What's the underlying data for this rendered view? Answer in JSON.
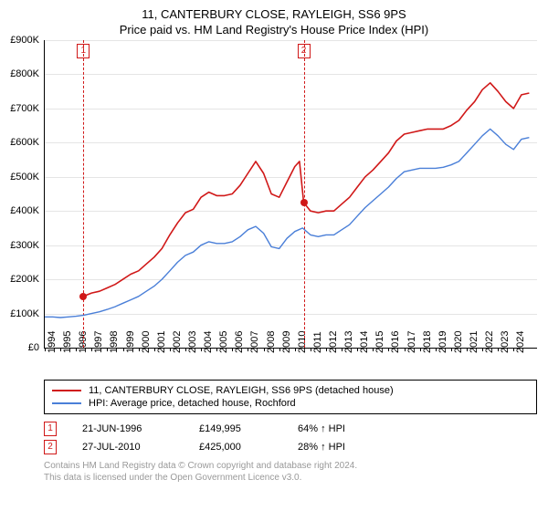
{
  "title_line1": "11, CANTERBURY CLOSE, RAYLEIGH, SS6 9PS",
  "title_line2": "Price paid vs. HM Land Registry's House Price Index (HPI)",
  "chart": {
    "type": "line",
    "x_start": 1994,
    "x_end": 2025.5,
    "ylim": [
      0,
      900
    ],
    "ytick_step": 100,
    "ytick_prefix": "£",
    "ytick_suffix": "K",
    "xtick_years": [
      1994,
      1995,
      1996,
      1997,
      1998,
      1999,
      2000,
      2001,
      2002,
      2003,
      2004,
      2005,
      2006,
      2007,
      2008,
      2009,
      2010,
      2011,
      2012,
      2013,
      2014,
      2015,
      2016,
      2017,
      2018,
      2019,
      2020,
      2021,
      2022,
      2023,
      2024
    ],
    "grid_color": "#e5e5e5",
    "background_color": "#ffffff",
    "series": {
      "property": {
        "color": "#d01818",
        "width": 1.6,
        "label": "11, CANTERBURY CLOSE, RAYLEIGH, SS6 9PS (detached house)",
        "points": [
          [
            1996.47,
            150
          ],
          [
            1997,
            160
          ],
          [
            1997.5,
            165
          ],
          [
            1998,
            175
          ],
          [
            1998.5,
            185
          ],
          [
            1999,
            200
          ],
          [
            1999.5,
            215
          ],
          [
            2000,
            225
          ],
          [
            2000.5,
            245
          ],
          [
            2001,
            265
          ],
          [
            2001.5,
            290
          ],
          [
            2002,
            330
          ],
          [
            2002.5,
            365
          ],
          [
            2003,
            395
          ],
          [
            2003.5,
            405
          ],
          [
            2004,
            440
          ],
          [
            2004.5,
            455
          ],
          [
            2005,
            445
          ],
          [
            2005.5,
            445
          ],
          [
            2006,
            450
          ],
          [
            2006.5,
            475
          ],
          [
            2007,
            510
          ],
          [
            2007.5,
            545
          ],
          [
            2008,
            510
          ],
          [
            2008.5,
            450
          ],
          [
            2009,
            440
          ],
          [
            2009.5,
            485
          ],
          [
            2010,
            530
          ],
          [
            2010.3,
            545
          ],
          [
            2010.57,
            425
          ],
          [
            2011,
            400
          ],
          [
            2011.5,
            395
          ],
          [
            2012,
            400
          ],
          [
            2012.5,
            400
          ],
          [
            2013,
            420
          ],
          [
            2013.5,
            440
          ],
          [
            2014,
            470
          ],
          [
            2014.5,
            500
          ],
          [
            2015,
            520
          ],
          [
            2015.5,
            545
          ],
          [
            2016,
            570
          ],
          [
            2016.5,
            605
          ],
          [
            2017,
            625
          ],
          [
            2017.5,
            630
          ],
          [
            2018,
            635
          ],
          [
            2018.5,
            640
          ],
          [
            2019,
            640
          ],
          [
            2019.5,
            640
          ],
          [
            2020,
            650
          ],
          [
            2020.5,
            665
          ],
          [
            2021,
            695
          ],
          [
            2021.5,
            720
          ],
          [
            2022,
            755
          ],
          [
            2022.5,
            775
          ],
          [
            2023,
            750
          ],
          [
            2023.5,
            720
          ],
          [
            2024,
            700
          ],
          [
            2024.5,
            740
          ],
          [
            2025,
            745
          ]
        ]
      },
      "hpi": {
        "color": "#4a7fd8",
        "width": 1.4,
        "label": "HPI: Average price, detached house, Rochford",
        "points": [
          [
            1994,
            90
          ],
          [
            1994.5,
            90
          ],
          [
            1995,
            88
          ],
          [
            1995.5,
            90
          ],
          [
            1996,
            92
          ],
          [
            1996.5,
            95
          ],
          [
            1997,
            100
          ],
          [
            1997.5,
            105
          ],
          [
            1998,
            112
          ],
          [
            1998.5,
            120
          ],
          [
            1999,
            130
          ],
          [
            1999.5,
            140
          ],
          [
            2000,
            150
          ],
          [
            2000.5,
            165
          ],
          [
            2001,
            180
          ],
          [
            2001.5,
            200
          ],
          [
            2002,
            225
          ],
          [
            2002.5,
            250
          ],
          [
            2003,
            270
          ],
          [
            2003.5,
            280
          ],
          [
            2004,
            300
          ],
          [
            2004.5,
            310
          ],
          [
            2005,
            305
          ],
          [
            2005.5,
            305
          ],
          [
            2006,
            310
          ],
          [
            2006.5,
            325
          ],
          [
            2007,
            345
          ],
          [
            2007.5,
            355
          ],
          [
            2008,
            335
          ],
          [
            2008.5,
            295
          ],
          [
            2009,
            290
          ],
          [
            2009.5,
            320
          ],
          [
            2010,
            340
          ],
          [
            2010.5,
            350
          ],
          [
            2011,
            330
          ],
          [
            2011.5,
            325
          ],
          [
            2012,
            330
          ],
          [
            2012.5,
            330
          ],
          [
            2013,
            345
          ],
          [
            2013.5,
            360
          ],
          [
            2014,
            385
          ],
          [
            2014.5,
            410
          ],
          [
            2015,
            430
          ],
          [
            2015.5,
            450
          ],
          [
            2016,
            470
          ],
          [
            2016.5,
            495
          ],
          [
            2017,
            515
          ],
          [
            2017.5,
            520
          ],
          [
            2018,
            525
          ],
          [
            2018.5,
            525
          ],
          [
            2019,
            525
          ],
          [
            2019.5,
            528
          ],
          [
            2020,
            535
          ],
          [
            2020.5,
            545
          ],
          [
            2021,
            570
          ],
          [
            2021.5,
            595
          ],
          [
            2022,
            620
          ],
          [
            2022.5,
            640
          ],
          [
            2023,
            620
          ],
          [
            2023.5,
            595
          ],
          [
            2024,
            580
          ],
          [
            2024.5,
            610
          ],
          [
            2025,
            615
          ]
        ]
      }
    },
    "sale_markers": [
      {
        "n": "1",
        "year": 1996.47,
        "price": 150
      },
      {
        "n": "2",
        "year": 2010.57,
        "price": 425
      }
    ]
  },
  "legend": [
    {
      "color": "#d01818",
      "text": "11, CANTERBURY CLOSE, RAYLEIGH, SS6 9PS (detached house)"
    },
    {
      "color": "#4a7fd8",
      "text": "HPI: Average price, detached house, Rochford"
    }
  ],
  "sales": [
    {
      "n": "1",
      "date": "21-JUN-1996",
      "price": "£149,995",
      "delta": "64% ↑ HPI"
    },
    {
      "n": "2",
      "date": "27-JUL-2010",
      "price": "£425,000",
      "delta": "28% ↑ HPI"
    }
  ],
  "footer_line1": "Contains HM Land Registry data © Crown copyright and database right 2024.",
  "footer_line2": "This data is licensed under the Open Government Licence v3.0."
}
